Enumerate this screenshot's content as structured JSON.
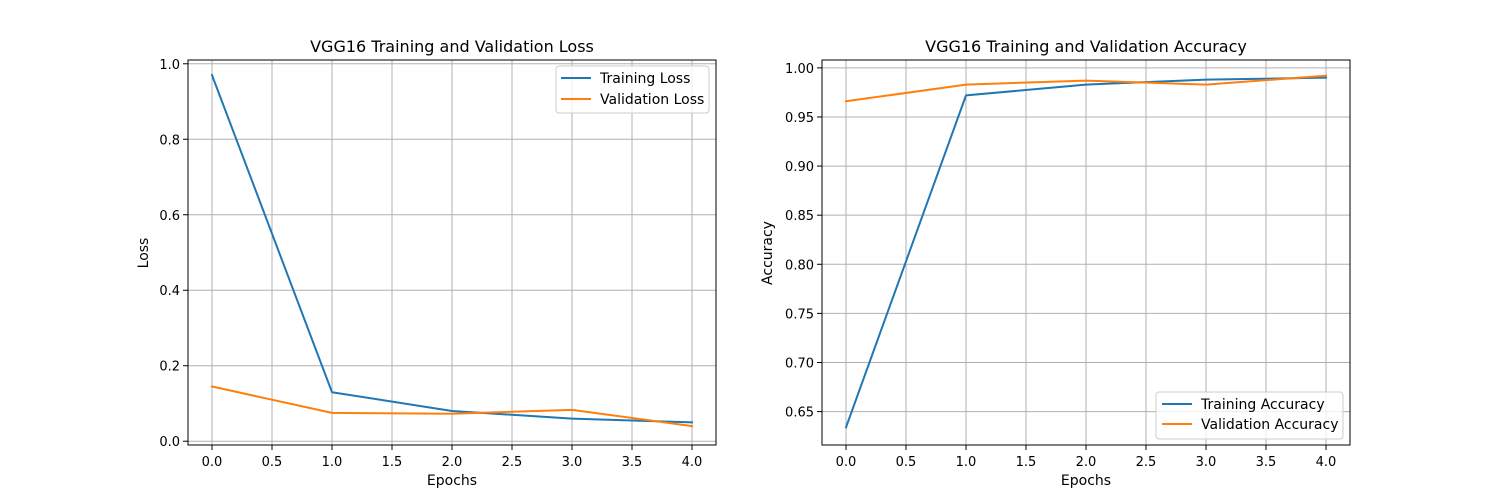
{
  "chart_data": [
    {
      "type": "line",
      "title": "VGG16 Training and Validation Loss",
      "xlabel": "Epochs",
      "ylabel": "Loss",
      "x": [
        0,
        1,
        2,
        3,
        4
      ],
      "xlim": [
        -0.2,
        4.2
      ],
      "ylim": [
        -0.01,
        1.01
      ],
      "xticks": [
        0.0,
        0.5,
        1.0,
        1.5,
        2.0,
        2.5,
        3.0,
        3.5,
        4.0
      ],
      "xtick_labels": [
        "0.0",
        "0.5",
        "1.0",
        "1.5",
        "2.0",
        "2.5",
        "3.0",
        "3.5",
        "4.0"
      ],
      "yticks": [
        0.0,
        0.2,
        0.4,
        0.6,
        0.8,
        1.0
      ],
      "ytick_labels": [
        "0.0",
        "0.2",
        "0.4",
        "0.6",
        "0.8",
        "1.0"
      ],
      "grid": true,
      "legend_position": "top-right",
      "series": [
        {
          "name": "Training Loss",
          "color": "#1f77b4",
          "values": [
            0.97,
            0.13,
            0.08,
            0.06,
            0.05
          ]
        },
        {
          "name": "Validation Loss",
          "color": "#ff7f0e",
          "values": [
            0.145,
            0.075,
            0.073,
            0.083,
            0.04
          ]
        }
      ]
    },
    {
      "type": "line",
      "title": "VGG16 Training and Validation Accuracy",
      "xlabel": "Epochs",
      "ylabel": "Accuracy",
      "x": [
        0,
        1,
        2,
        3,
        4
      ],
      "xlim": [
        -0.2,
        4.2
      ],
      "ylim": [
        0.616,
        1.008
      ],
      "xticks": [
        0.0,
        0.5,
        1.0,
        1.5,
        2.0,
        2.5,
        3.0,
        3.5,
        4.0
      ],
      "xtick_labels": [
        "0.0",
        "0.5",
        "1.0",
        "1.5",
        "2.0",
        "2.5",
        "3.0",
        "3.5",
        "4.0"
      ],
      "yticks": [
        0.65,
        0.7,
        0.75,
        0.8,
        0.85,
        0.9,
        0.95,
        1.0
      ],
      "ytick_labels": [
        "0.65",
        "0.70",
        "0.75",
        "0.80",
        "0.85",
        "0.90",
        "0.95",
        "1.00"
      ],
      "grid": true,
      "legend_position": "bottom-right",
      "series": [
        {
          "name": "Training Accuracy",
          "color": "#1f77b4",
          "values": [
            0.634,
            0.972,
            0.983,
            0.988,
            0.99
          ]
        },
        {
          "name": "Validation Accuracy",
          "color": "#ff7f0e",
          "values": [
            0.966,
            0.983,
            0.987,
            0.983,
            0.992
          ]
        }
      ]
    }
  ]
}
